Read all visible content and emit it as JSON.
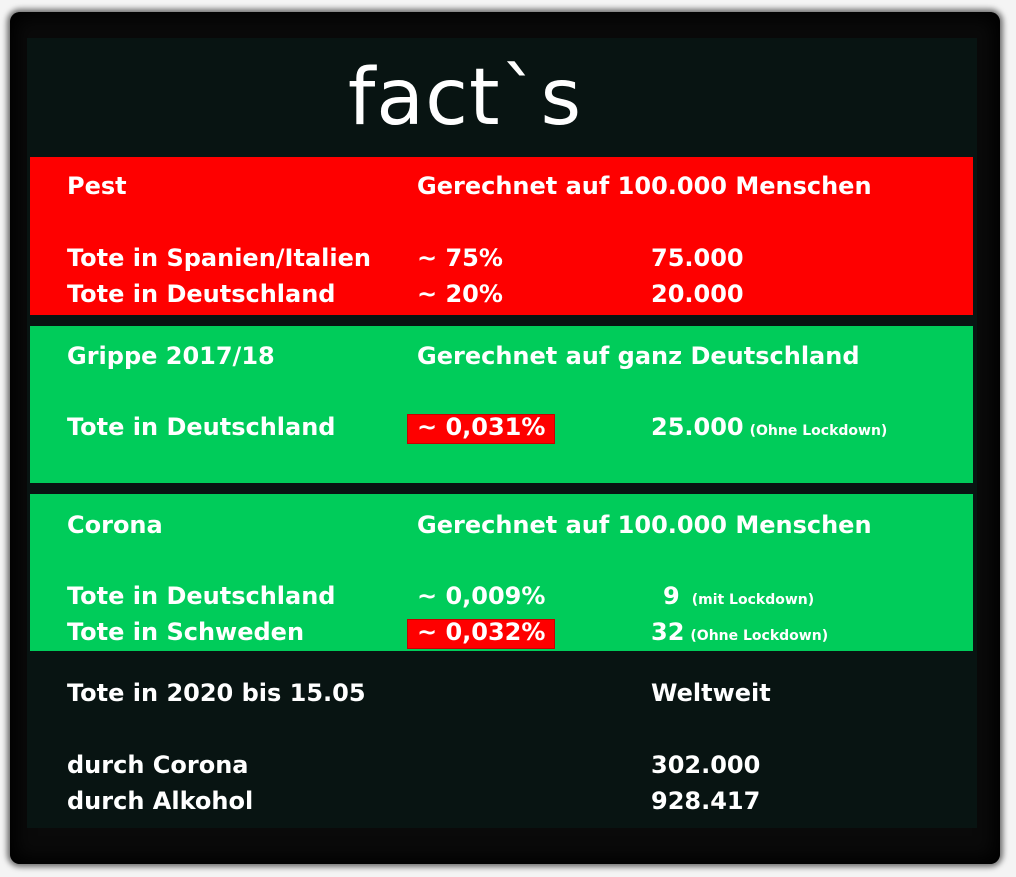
{
  "title": "fact`s",
  "pest": {
    "label": "Pest",
    "basis": "Gerechnet auf 100.000 Menschen",
    "rows": [
      {
        "label": "Tote in Spanien/Italien",
        "percent": "~ 75%",
        "count": "75.000"
      },
      {
        "label": "Tote in Deutschland",
        "percent": "~ 20%",
        "count": "20.000"
      }
    ]
  },
  "grippe": {
    "label": "Grippe 2017/18",
    "basis": "Gerechnet auf ganz Deutschland",
    "rows": [
      {
        "label": "Tote in Deutschland",
        "percent": "~ 0,031%",
        "count": "25.000",
        "note": "(Ohne Lockdown)"
      }
    ]
  },
  "corona": {
    "label": "Corona",
    "basis": "Gerechnet auf 100.000 Menschen",
    "rows": [
      {
        "label": "Tote in Deutschland",
        "percent": "~ 0,009%",
        "count": "9",
        "note": "(mit Lockdown)"
      },
      {
        "label": "Tote in Schweden",
        "percent": "~ 0,032%",
        "count": "32",
        "note": "(Ohne Lockdown)"
      }
    ]
  },
  "world": {
    "label": "Tote in 2020 bis 15.05",
    "scope": "Weltweit",
    "rows": [
      {
        "label": "durch Corona",
        "count": "302.000"
      },
      {
        "label": "durch Alkohol",
        "count": "928.417"
      }
    ]
  },
  "colors": {
    "pest_background": "#fe0000",
    "green_background": "#00cc5a",
    "highlight": "#fe0000",
    "board": "#081412"
  }
}
